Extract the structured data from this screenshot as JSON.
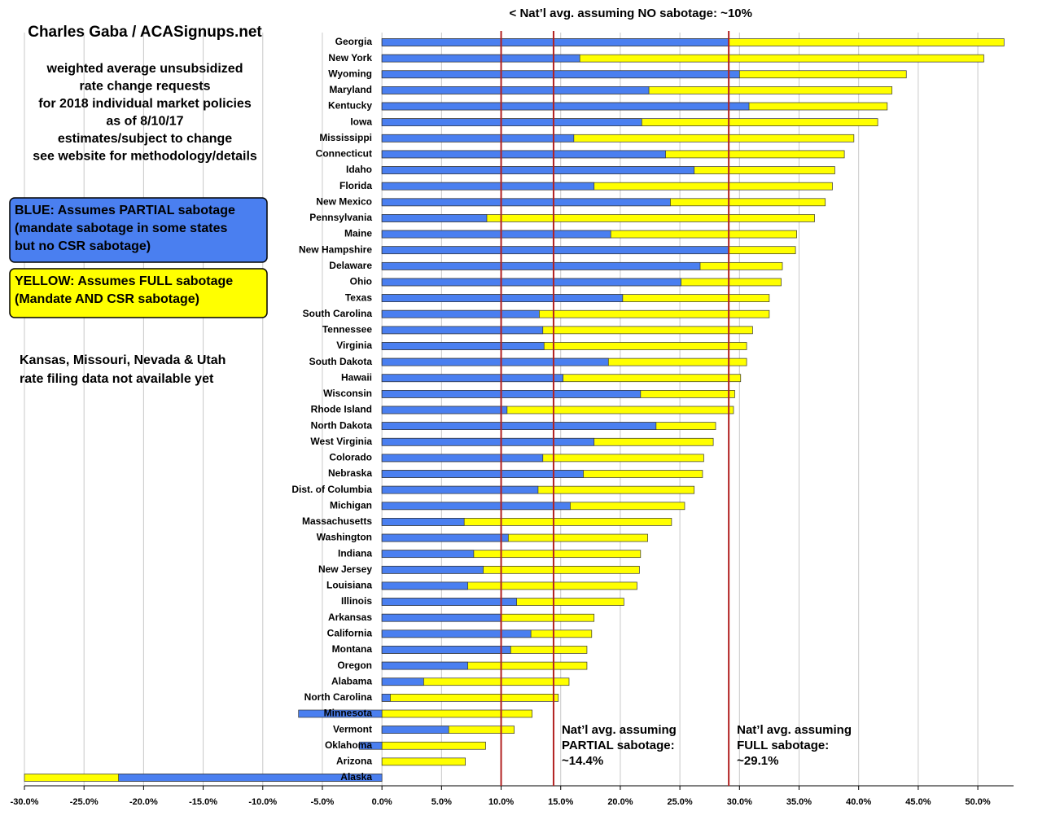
{
  "chart_data": {
    "type": "bar",
    "orientation": "horizontal",
    "overlap": true,
    "title": "Charles Gaba / ACASignups.net",
    "subtitle": [
      "weighted average unsubsidized",
      "rate change requests",
      "for 2018 individual market policies",
      "as of 8/10/17",
      "estimates/subject to change",
      "see website for methodology/details"
    ],
    "note": [
      "Kansas, Missouri, Nevada & Utah",
      "rate filing data not available yet"
    ],
    "categories": [
      "Georgia",
      "New York",
      "Wyoming",
      "Maryland",
      "Kentucky",
      "Iowa",
      "Mississippi",
      "Connecticut",
      "Idaho",
      "Florida",
      "New Mexico",
      "Pennsylvania",
      "Maine",
      "New Hampshire",
      "Delaware",
      "Ohio",
      "Texas",
      "South Carolina",
      "Tennessee",
      "Virginia",
      "South Dakota",
      "Hawaii",
      "Wisconsin",
      "Rhode Island",
      "North Dakota",
      "West Virginia",
      "Colorado",
      "Nebraska",
      "Dist. of Columbia",
      "Michigan",
      "Massachusetts",
      "Washington",
      "Indiana",
      "New Jersey",
      "Louisiana",
      "Illinois",
      "Arkansas",
      "California",
      "Montana",
      "Oregon",
      "Alabama",
      "North Carolina",
      "Minnesota",
      "Vermont",
      "Oklahoma",
      "Arizona",
      "Alaska"
    ],
    "series": [
      {
        "name": "YELLOW: Assumes FULL sabotage",
        "description": [
          "(Mandate AND CSR sabotage)"
        ],
        "color": "#ffff00",
        "values": [
          52.2,
          50.5,
          44.0,
          42.8,
          42.4,
          41.6,
          39.6,
          38.8,
          38.0,
          37.8,
          37.2,
          36.3,
          34.8,
          34.7,
          33.6,
          33.5,
          32.5,
          32.5,
          31.1,
          30.6,
          30.6,
          30.1,
          29.6,
          29.5,
          28.0,
          27.8,
          27.0,
          26.9,
          26.2,
          25.4,
          24.3,
          22.3,
          21.7,
          21.6,
          21.4,
          20.3,
          17.8,
          17.6,
          17.2,
          17.2,
          15.7,
          14.8,
          12.6,
          11.1,
          8.7,
          7.0,
          -30.0
        ]
      },
      {
        "name": "BLUE: Assumes PARTIAL sabotage",
        "description": [
          "(mandate sabotage in some states",
          "but no CSR sabotage)"
        ],
        "color": "#4a7ff0",
        "values": [
          29.1,
          16.6,
          30.0,
          22.4,
          30.8,
          21.8,
          16.1,
          23.8,
          26.2,
          17.8,
          24.2,
          8.8,
          19.2,
          29.1,
          26.7,
          25.1,
          20.2,
          13.2,
          13.5,
          13.6,
          19.0,
          15.2,
          21.7,
          10.5,
          23.0,
          17.8,
          13.5,
          16.9,
          13.1,
          15.8,
          6.9,
          10.6,
          7.7,
          8.5,
          7.2,
          11.3,
          10.0,
          12.5,
          10.8,
          7.2,
          3.5,
          0.7,
          -7.0,
          5.6,
          -1.9,
          0,
          -22.1
        ]
      }
    ],
    "reference_lines": [
      {
        "value": 10,
        "label": [
          "< Nat’l avg. assuming NO sabotage: ~10%"
        ]
      },
      {
        "value": 14.4,
        "label": [
          "Nat’l avg. assuming",
          "PARTIAL sabotage:",
          "~14.4%"
        ]
      },
      {
        "value": 29.1,
        "label": [
          "Nat’l avg. assuming",
          "FULL sabotage:",
          "~29.1%"
        ]
      }
    ],
    "xlim": [
      -30,
      53
    ],
    "xticks": [
      {
        "value": -30,
        "label": "-30.0%"
      },
      {
        "value": -25,
        "label": "-25.0%"
      },
      {
        "value": -20,
        "label": "-20.0%"
      },
      {
        "value": -15,
        "label": "-15.0%"
      },
      {
        "value": -10,
        "label": "-10.0%"
      },
      {
        "value": -5,
        "label": "-5.0%"
      },
      {
        "value": 0,
        "label": "0.0%"
      },
      {
        "value": 5,
        "label": "5.0%"
      },
      {
        "value": 10,
        "label": "10.0%"
      },
      {
        "value": 15,
        "label": "15.0%"
      },
      {
        "value": 20,
        "label": "20.0%"
      },
      {
        "value": 25,
        "label": "25.0%"
      },
      {
        "value": 30,
        "label": "30.0%"
      },
      {
        "value": 35,
        "label": "35.0%"
      },
      {
        "value": 40,
        "label": "40.0%"
      },
      {
        "value": 45,
        "label": "45.0%"
      },
      {
        "value": 50,
        "label": "50.0%"
      }
    ],
    "grid": true
  }
}
